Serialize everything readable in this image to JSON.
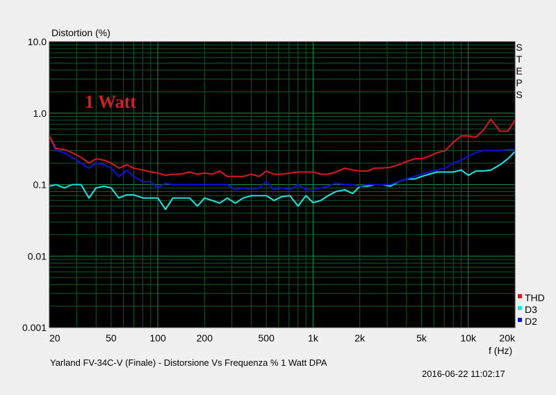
{
  "chart_data": {
    "type": "line",
    "ylabel": "Distortion (%)",
    "xlabel": "f (Hz)",
    "yscale": "log",
    "xscale": "log",
    "ylim": [
      0.001,
      10
    ],
    "xlim": [
      20,
      20000
    ],
    "yticks": [
      "10.0",
      "1.0",
      "0.1",
      "0.01",
      "0.001"
    ],
    "xticks": [
      "20",
      "50",
      "100",
      "200",
      "500",
      "1k",
      "2k",
      "5k",
      "10k",
      "20k"
    ],
    "annotation": "1 Watt",
    "side_label": "STEPS",
    "grid": true,
    "legend_position": "bottom-right",
    "series": [
      {
        "name": "THD",
        "color": "#e0161c",
        "x": [
          20,
          22,
          25,
          28,
          32,
          36,
          40,
          45,
          50,
          56,
          63,
          70,
          80,
          90,
          100,
          112,
          125,
          140,
          160,
          180,
          200,
          224,
          250,
          280,
          315,
          355,
          400,
          450,
          500,
          560,
          630,
          710,
          800,
          900,
          1000,
          1120,
          1250,
          1400,
          1600,
          1800,
          2000,
          2240,
          2500,
          2800,
          3150,
          3550,
          4000,
          4500,
          5000,
          5600,
          6300,
          7100,
          8000,
          9000,
          10000,
          11200,
          12500,
          14000,
          16000,
          18000,
          20000
        ],
        "values": [
          0.48,
          0.32,
          0.31,
          0.28,
          0.24,
          0.2,
          0.23,
          0.22,
          0.2,
          0.17,
          0.19,
          0.17,
          0.16,
          0.15,
          0.145,
          0.135,
          0.14,
          0.14,
          0.15,
          0.14,
          0.145,
          0.14,
          0.155,
          0.13,
          0.13,
          0.13,
          0.14,
          0.13,
          0.155,
          0.14,
          0.14,
          0.145,
          0.15,
          0.15,
          0.15,
          0.14,
          0.14,
          0.15,
          0.17,
          0.16,
          0.155,
          0.155,
          0.17,
          0.17,
          0.175,
          0.19,
          0.21,
          0.23,
          0.23,
          0.25,
          0.28,
          0.3,
          0.39,
          0.48,
          0.48,
          0.46,
          0.58,
          0.82,
          0.56,
          0.56,
          0.8
        ]
      },
      {
        "name": "D3",
        "color": "#18e8e8",
        "x": [
          20,
          22,
          25,
          28,
          32,
          36,
          40,
          45,
          50,
          56,
          63,
          70,
          80,
          90,
          100,
          112,
          125,
          140,
          160,
          180,
          200,
          224,
          250,
          280,
          315,
          355,
          400,
          450,
          500,
          560,
          630,
          710,
          800,
          900,
          1000,
          1120,
          1250,
          1400,
          1600,
          1800,
          2000,
          2240,
          2500,
          2800,
          3150,
          3550,
          4000,
          4500,
          5000,
          5600,
          6300,
          7100,
          8000,
          9000,
          10000,
          11200,
          12500,
          14000,
          16000,
          18000,
          20000
        ],
        "values": [
          0.095,
          0.1,
          0.09,
          0.1,
          0.1,
          0.065,
          0.09,
          0.095,
          0.09,
          0.065,
          0.072,
          0.072,
          0.065,
          0.065,
          0.065,
          0.045,
          0.065,
          0.065,
          0.065,
          0.05,
          0.065,
          0.06,
          0.055,
          0.065,
          0.055,
          0.065,
          0.07,
          0.07,
          0.07,
          0.06,
          0.068,
          0.07,
          0.05,
          0.07,
          0.056,
          0.06,
          0.07,
          0.08,
          0.085,
          0.075,
          0.095,
          0.095,
          0.1,
          0.1,
          0.095,
          0.11,
          0.12,
          0.12,
          0.13,
          0.14,
          0.15,
          0.15,
          0.15,
          0.16,
          0.135,
          0.155,
          0.155,
          0.16,
          0.19,
          0.23,
          0.29
        ]
      },
      {
        "name": "D2",
        "color": "#1010e0",
        "x": [
          20,
          22,
          25,
          28,
          32,
          36,
          40,
          45,
          50,
          56,
          63,
          70,
          80,
          90,
          100,
          112,
          125,
          140,
          160,
          180,
          200,
          224,
          250,
          280,
          315,
          355,
          400,
          450,
          500,
          560,
          630,
          710,
          800,
          900,
          1000,
          1120,
          1250,
          1400,
          1600,
          1800,
          2000,
          2240,
          2500,
          2800,
          3150,
          3550,
          4000,
          4500,
          5000,
          5600,
          6300,
          7100,
          8000,
          9000,
          10000,
          11200,
          12500,
          14000,
          16000,
          18000,
          20000
        ],
        "values": [
          0.48,
          0.3,
          0.28,
          0.24,
          0.2,
          0.17,
          0.2,
          0.19,
          0.17,
          0.13,
          0.16,
          0.13,
          0.11,
          0.11,
          0.09,
          0.105,
          0.1,
          0.1,
          0.1,
          0.1,
          0.1,
          0.1,
          0.1,
          0.1,
          0.085,
          0.09,
          0.085,
          0.09,
          0.11,
          0.085,
          0.09,
          0.085,
          0.1,
          0.085,
          0.085,
          0.09,
          0.095,
          0.105,
          0.1,
          0.1,
          0.095,
          0.1,
          0.1,
          0.1,
          0.1,
          0.11,
          0.12,
          0.13,
          0.14,
          0.15,
          0.16,
          0.17,
          0.2,
          0.22,
          0.25,
          0.28,
          0.3,
          0.3,
          0.3,
          0.31,
          0.31
        ]
      }
    ]
  },
  "footer": {
    "caption": "Yarland FV-34C-V (Finale) - Distorsione Vs Frequenza % 1 Watt     DPA",
    "timestamp": "2016-06-22 11:02:17"
  }
}
